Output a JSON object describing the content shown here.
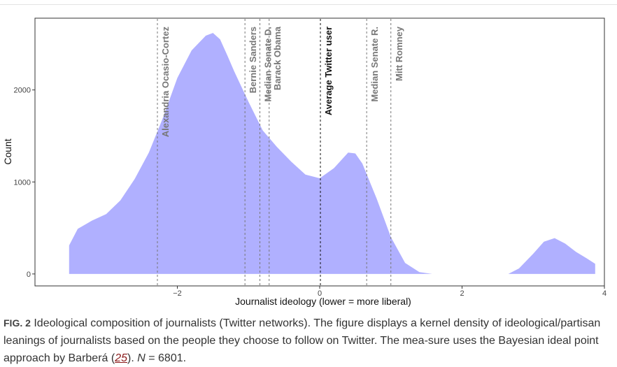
{
  "chart_data": {
    "type": "area",
    "xlabel": "Journalist ideology (lower = more liberal)",
    "ylabel": "Count",
    "xlim": [
      -4.0,
      4.0
    ],
    "ylim": [
      -130,
      2780
    ],
    "xticks": [
      -2,
      0,
      2,
      4
    ],
    "xtick_labels": [
      "−2",
      "0",
      "2",
      "4"
    ],
    "yticks": [
      0,
      1000,
      2000
    ],
    "ytick_labels": [
      "0",
      "1000",
      "2000"
    ],
    "grid": false,
    "fill_color": "#b0b0ff",
    "series": [
      {
        "x": [
          -3.52,
          -3.4,
          -3.2,
          -3.0,
          -2.8,
          -2.6,
          -2.4,
          -2.2,
          -2.0,
          -1.8,
          -1.6,
          -1.5,
          -1.4,
          -1.3,
          -1.2,
          -1.0,
          -0.8,
          -0.6,
          -0.4,
          -0.2,
          0.0,
          0.2,
          0.4,
          0.5,
          0.6,
          0.8,
          1.0,
          1.2,
          1.4,
          1.58
        ],
        "y": [
          310,
          490,
          580,
          650,
          800,
          1030,
          1320,
          1700,
          2130,
          2430,
          2590,
          2620,
          2550,
          2380,
          2200,
          1870,
          1560,
          1380,
          1220,
          1080,
          1040,
          1150,
          1320,
          1310,
          1200,
          820,
          400,
          120,
          20,
          0
        ]
      },
      {
        "x": [
          2.65,
          2.8,
          3.0,
          3.15,
          3.3,
          3.45,
          3.6,
          3.75,
          3.87
        ],
        "y": [
          0,
          60,
          220,
          350,
          390,
          330,
          240,
          170,
          110
        ]
      }
    ],
    "reference_lines": [
      {
        "label": "Alexandria Ocasio-Cortez",
        "x": -2.28,
        "color": "#777777"
      },
      {
        "label": "Bernie Sanders",
        "x": -1.05,
        "color": "#777777"
      },
      {
        "label": "Median Senate D.",
        "x": -0.84,
        "color": "#777777"
      },
      {
        "label": "Barack Obama",
        "x": -0.71,
        "color": "#777777"
      },
      {
        "label": "Average Twitter user",
        "x": 0.01,
        "color": "#111111"
      },
      {
        "label": "Median Senate R.",
        "x": 0.66,
        "color": "#777777"
      },
      {
        "label": "Mitt Romney",
        "x": 1.0,
        "color": "#777777"
      }
    ]
  },
  "caption": {
    "fig_label": "FIG. 2",
    "text_before_ref": " Ideological composition of journalists (Twitter networks). The figure displays a kernel density of ideological/partisan leanings of journalists based on the people they choose to follow on Twitter. The mea-sure uses the Bayesian ideal point approach by Barberá (",
    "ref": "25",
    "text_after_ref": "). ",
    "n_var": "N",
    "n_value": " = 6801."
  }
}
